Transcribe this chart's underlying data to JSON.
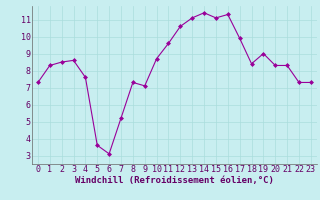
{
  "x": [
    0,
    1,
    2,
    3,
    4,
    5,
    6,
    7,
    8,
    9,
    10,
    11,
    12,
    13,
    14,
    15,
    16,
    17,
    18,
    19,
    20,
    21,
    22,
    23
  ],
  "y": [
    7.3,
    8.3,
    8.5,
    8.6,
    7.6,
    3.6,
    3.1,
    5.2,
    7.3,
    7.1,
    8.7,
    9.6,
    10.6,
    11.1,
    11.4,
    11.1,
    11.3,
    9.9,
    8.4,
    9.0,
    8.3,
    8.3,
    7.3,
    7.3
  ],
  "line_color": "#990099",
  "marker": "D",
  "marker_size": 2.0,
  "background_color": "#c8eef0",
  "grid_color": "#aadddd",
  "xlabel": "Windchill (Refroidissement éolien,°C)",
  "xlabel_color": "#660066",
  "xlabel_fontsize": 6.5,
  "tick_color": "#660066",
  "tick_fontsize": 6.0,
  "ylim": [
    2.5,
    11.8
  ],
  "xlim": [
    -0.5,
    23.5
  ],
  "yticks": [
    3,
    4,
    5,
    6,
    7,
    8,
    9,
    10,
    11
  ],
  "xticks": [
    0,
    1,
    2,
    3,
    4,
    5,
    6,
    7,
    8,
    9,
    10,
    11,
    12,
    13,
    14,
    15,
    16,
    17,
    18,
    19,
    20,
    21,
    22,
    23
  ]
}
